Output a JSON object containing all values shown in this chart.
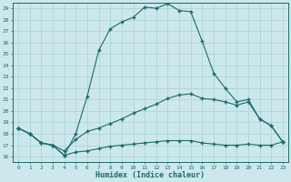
{
  "title": "",
  "xlabel": "Humidex (Indice chaleur)",
  "xlim": [
    -0.5,
    23.5
  ],
  "ylim": [
    15.5,
    29.5
  ],
  "xticks": [
    0,
    1,
    2,
    3,
    4,
    5,
    6,
    7,
    8,
    9,
    10,
    11,
    12,
    13,
    14,
    15,
    16,
    17,
    18,
    19,
    20,
    21,
    22,
    23
  ],
  "yticks": [
    16,
    17,
    18,
    19,
    20,
    21,
    22,
    23,
    24,
    25,
    26,
    27,
    28,
    29
  ],
  "bg_color": "#cde8ec",
  "line_color": "#1a6b6b",
  "grid_color": "#b0d8dc",
  "series": {
    "max": [
      18.5,
      18.0,
      17.2,
      17.0,
      16.1,
      18.0,
      21.3,
      25.3,
      27.2,
      27.8,
      28.2,
      29.1,
      29.0,
      29.4,
      28.8,
      28.7,
      26.1,
      23.3,
      22.0,
      20.8,
      21.0,
      19.3,
      18.7,
      17.3
    ],
    "mean": [
      18.5,
      18.0,
      17.2,
      17.0,
      16.5,
      17.5,
      18.2,
      18.5,
      18.9,
      19.3,
      19.8,
      20.2,
      20.6,
      21.1,
      21.4,
      21.5,
      21.1,
      21.0,
      20.8,
      20.5,
      20.8,
      19.3,
      18.7,
      17.3
    ],
    "min": [
      18.5,
      18.0,
      17.2,
      17.0,
      16.1,
      16.4,
      16.5,
      16.7,
      16.9,
      17.0,
      17.1,
      17.2,
      17.3,
      17.4,
      17.4,
      17.4,
      17.2,
      17.1,
      17.0,
      17.0,
      17.1,
      17.0,
      17.0,
      17.3
    ]
  },
  "hours": [
    0,
    1,
    2,
    3,
    4,
    5,
    6,
    7,
    8,
    9,
    10,
    11,
    12,
    13,
    14,
    15,
    16,
    17,
    18,
    19,
    20,
    21,
    22,
    23
  ]
}
